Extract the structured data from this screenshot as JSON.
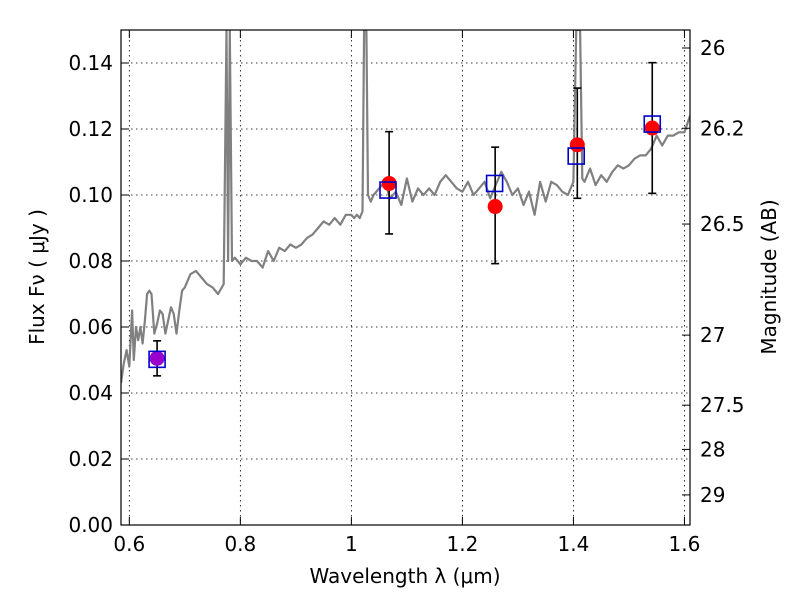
{
  "chart_data": {
    "type": "scatter",
    "xlabel": "Wavelength  λ (μm)",
    "ylabel": "Flux  Fν  ( μJy )",
    "ylabel_right": "Magnitude (AB)",
    "xlim": [
      0.585,
      1.61
    ],
    "ylim": [
      0.0,
      0.15
    ],
    "grid": true,
    "x_ticks": [
      0.6,
      0.8,
      1.0,
      1.2,
      1.4,
      1.6
    ],
    "x_tick_labels": [
      "0.6",
      "0.8",
      "1",
      "1.2",
      "1.4",
      "1.6"
    ],
    "y_ticks": [
      0.0,
      0.02,
      0.04,
      0.06,
      0.08,
      0.1,
      0.12,
      0.14
    ],
    "y_tick_labels": [
      "0.00",
      "0.02",
      "0.04",
      "0.06",
      "0.08",
      "0.10",
      "0.12",
      "0.14"
    ],
    "right_ticks": [
      {
        "label": "26",
        "value": 26
      },
      {
        "label": "26.2",
        "value": 26.2
      },
      {
        "label": "26.5",
        "value": 26.5
      },
      {
        "label": "27",
        "value": 27
      },
      {
        "label": "27.5",
        "value": 27.5
      },
      {
        "label": "28",
        "value": 28
      },
      {
        "label": "29",
        "value": 29
      }
    ],
    "series": [
      {
        "kind": "model-spectrum",
        "color": "#808080",
        "x": [
          0.585,
          0.59,
          0.595,
          0.6,
          0.605,
          0.608,
          0.612,
          0.616,
          0.62,
          0.624,
          0.628,
          0.632,
          0.636,
          0.64,
          0.645,
          0.65,
          0.655,
          0.66,
          0.665,
          0.67,
          0.675,
          0.68,
          0.685,
          0.69,
          0.695,
          0.7,
          0.705,
          0.71,
          0.72,
          0.73,
          0.74,
          0.75,
          0.76,
          0.77,
          0.775,
          0.778,
          0.781,
          0.785,
          0.79,
          0.8,
          0.81,
          0.82,
          0.83,
          0.84,
          0.85,
          0.86,
          0.87,
          0.88,
          0.89,
          0.9,
          0.91,
          0.92,
          0.93,
          0.94,
          0.95,
          0.96,
          0.97,
          0.98,
          0.99,
          1.0,
          1.005,
          1.01,
          1.015,
          1.02,
          1.023,
          1.027,
          1.03,
          1.035,
          1.04,
          1.05,
          1.06,
          1.07,
          1.08,
          1.09,
          1.1,
          1.11,
          1.12,
          1.13,
          1.14,
          1.15,
          1.16,
          1.17,
          1.18,
          1.19,
          1.2,
          1.21,
          1.22,
          1.23,
          1.24,
          1.25,
          1.26,
          1.27,
          1.28,
          1.29,
          1.3,
          1.31,
          1.32,
          1.33,
          1.34,
          1.35,
          1.36,
          1.37,
          1.38,
          1.39,
          1.4,
          1.405,
          1.408,
          1.412,
          1.416,
          1.42,
          1.43,
          1.44,
          1.45,
          1.46,
          1.47,
          1.48,
          1.49,
          1.5,
          1.51,
          1.52,
          1.53,
          1.54,
          1.55,
          1.56,
          1.57,
          1.58,
          1.59,
          1.6,
          1.61
        ],
        "y": [
          0.043,
          0.049,
          0.053,
          0.048,
          0.065,
          0.05,
          0.06,
          0.056,
          0.06,
          0.055,
          0.062,
          0.07,
          0.071,
          0.07,
          0.058,
          0.061,
          0.065,
          0.064,
          0.058,
          0.062,
          0.066,
          0.064,
          0.058,
          0.065,
          0.071,
          0.072,
          0.074,
          0.076,
          0.077,
          0.075,
          0.073,
          0.072,
          0.07,
          0.073,
          0.15,
          0.08,
          0.15,
          0.08,
          0.081,
          0.079,
          0.081,
          0.08,
          0.08,
          0.078,
          0.083,
          0.08,
          0.084,
          0.083,
          0.085,
          0.084,
          0.085,
          0.087,
          0.088,
          0.09,
          0.092,
          0.091,
          0.093,
          0.091,
          0.094,
          0.094,
          0.093,
          0.094,
          0.093,
          0.095,
          0.15,
          0.15,
          0.1,
          0.098,
          0.1,
          0.102,
          0.104,
          0.099,
          0.101,
          0.097,
          0.105,
          0.098,
          0.102,
          0.1,
          0.102,
          0.1,
          0.104,
          0.106,
          0.104,
          0.102,
          0.101,
          0.104,
          0.1,
          0.102,
          0.104,
          0.099,
          0.103,
          0.107,
          0.104,
          0.1,
          0.102,
          0.097,
          0.101,
          0.094,
          0.104,
          0.098,
          0.104,
          0.103,
          0.101,
          0.1,
          0.104,
          0.15,
          0.15,
          0.15,
          0.105,
          0.104,
          0.108,
          0.103,
          0.106,
          0.104,
          0.107,
          0.109,
          0.108,
          0.109,
          0.111,
          0.112,
          0.112,
          0.114,
          0.118,
          0.115,
          0.118,
          0.118,
          0.119,
          0.119,
          0.124
        ]
      },
      {
        "kind": "model-photometry",
        "marker": "open-square",
        "color": "#0000cc",
        "x": [
          0.65,
          1.066,
          1.258,
          1.405,
          1.542
        ],
        "y": [
          0.0502,
          0.1015,
          0.1035,
          0.1118,
          0.1215
        ]
      },
      {
        "kind": "observed",
        "marker": "filled-circle",
        "color": "#ff0000",
        "x": [
          0.65,
          1.068,
          1.259,
          1.407,
          1.542
        ],
        "y": [
          0.0505,
          0.1035,
          0.0965,
          0.1152,
          0.1203
        ],
        "yerr_low": [
          0.0053,
          0.0153,
          0.0173,
          0.0162,
          0.0198
        ],
        "yerr_high": [
          0.0053,
          0.0157,
          0.018,
          0.0172,
          0.0198
        ]
      }
    ]
  },
  "colors": {
    "spectrum": "#808080",
    "model_square": "#0000cc",
    "observed_point": "#ff0000",
    "overlap_point": "#9900cc",
    "error_bar": "#000000"
  }
}
